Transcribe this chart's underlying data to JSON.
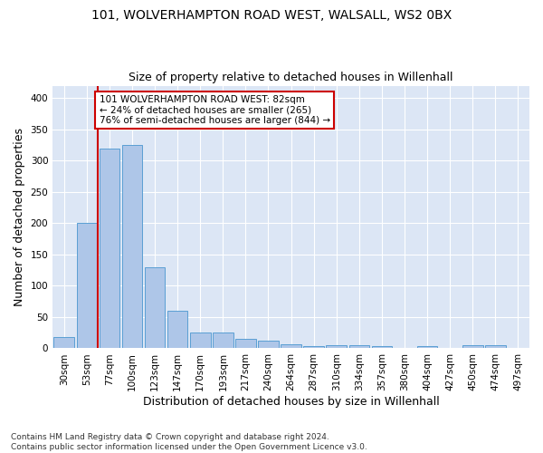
{
  "title1": "101, WOLVERHAMPTON ROAD WEST, WALSALL, WS2 0BX",
  "title2": "Size of property relative to detached houses in Willenhall",
  "xlabel": "Distribution of detached houses by size in Willenhall",
  "ylabel": "Number of detached properties",
  "footnote": "Contains HM Land Registry data © Crown copyright and database right 2024.\nContains public sector information licensed under the Open Government Licence v3.0.",
  "bin_labels": [
    "30sqm",
    "53sqm",
    "77sqm",
    "100sqm",
    "123sqm",
    "147sqm",
    "170sqm",
    "193sqm",
    "217sqm",
    "240sqm",
    "264sqm",
    "287sqm",
    "310sqm",
    "334sqm",
    "357sqm",
    "380sqm",
    "404sqm",
    "427sqm",
    "450sqm",
    "474sqm",
    "497sqm"
  ],
  "bar_values": [
    18,
    200,
    320,
    325,
    130,
    60,
    25,
    25,
    15,
    12,
    7,
    4,
    5,
    5,
    3,
    0,
    4,
    0,
    5,
    5,
    0
  ],
  "bar_color": "#aec6e8",
  "bar_edge_color": "#5a9fd4",
  "property_line_x": 2,
  "property_line_color": "#cc0000",
  "annotation_text": "101 WOLVERHAMPTON ROAD WEST: 82sqm\n← 24% of detached houses are smaller (265)\n76% of semi-detached houses are larger (844) →",
  "annotation_box_color": "#ffffff",
  "annotation_box_edge_color": "#cc0000",
  "ylim": [
    0,
    420
  ],
  "yticks": [
    0,
    50,
    100,
    150,
    200,
    250,
    300,
    350,
    400
  ],
  "plot_bg_color": "#dce6f5",
  "grid_color": "#ffffff",
  "fig_bg_color": "#ffffff",
  "title_fontsize": 10,
  "subtitle_fontsize": 9,
  "axis_label_fontsize": 9,
  "tick_fontsize": 7.5,
  "annotation_fontsize": 7.5
}
